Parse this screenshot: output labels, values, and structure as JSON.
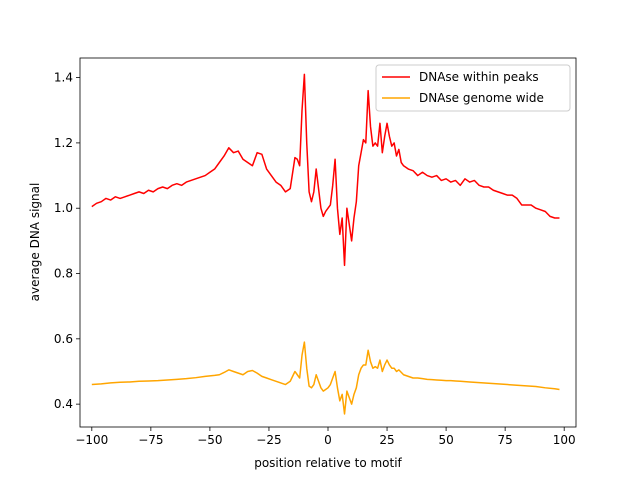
{
  "chart_data": {
    "type": "line",
    "title": "",
    "xlabel": "position relative to motif",
    "ylabel": "average DNA signal",
    "xlim": [
      -105,
      105
    ],
    "ylim": [
      0.33,
      1.46
    ],
    "xticks": [
      -100,
      -75,
      -50,
      -25,
      0,
      25,
      50,
      75,
      100
    ],
    "yticks": [
      0.4,
      0.6,
      0.8,
      1.0,
      1.2,
      1.4
    ],
    "ytick_labels": [
      "0.4",
      "0.6",
      "0.8",
      "1.0",
      "1.2",
      "1.4"
    ],
    "grid": false,
    "legend_position": "top-right",
    "series": [
      {
        "name": "DNAse within peaks",
        "color": "#ff0000",
        "points": [
          [
            -100,
            1.005
          ],
          [
            -98,
            1.015
          ],
          [
            -96,
            1.02
          ],
          [
            -94,
            1.03
          ],
          [
            -92,
            1.025
          ],
          [
            -90,
            1.035
          ],
          [
            -88,
            1.03
          ],
          [
            -86,
            1.035
          ],
          [
            -84,
            1.04
          ],
          [
            -82,
            1.045
          ],
          [
            -80,
            1.05
          ],
          [
            -78,
            1.045
          ],
          [
            -76,
            1.055
          ],
          [
            -74,
            1.05
          ],
          [
            -72,
            1.06
          ],
          [
            -70,
            1.065
          ],
          [
            -68,
            1.06
          ],
          [
            -66,
            1.07
          ],
          [
            -64,
            1.075
          ],
          [
            -62,
            1.07
          ],
          [
            -60,
            1.08
          ],
          [
            -58,
            1.085
          ],
          [
            -56,
            1.09
          ],
          [
            -54,
            1.095
          ],
          [
            -52,
            1.1
          ],
          [
            -50,
            1.11
          ],
          [
            -48,
            1.12
          ],
          [
            -46,
            1.14
          ],
          [
            -44,
            1.16
          ],
          [
            -42,
            1.185
          ],
          [
            -40,
            1.17
          ],
          [
            -38,
            1.175
          ],
          [
            -36,
            1.15
          ],
          [
            -34,
            1.14
          ],
          [
            -32,
            1.13
          ],
          [
            -30,
            1.17
          ],
          [
            -28,
            1.165
          ],
          [
            -26,
            1.12
          ],
          [
            -24,
            1.1
          ],
          [
            -22,
            1.08
          ],
          [
            -20,
            1.07
          ],
          [
            -18,
            1.05
          ],
          [
            -16,
            1.06
          ],
          [
            -14,
            1.155
          ],
          [
            -13,
            1.15
          ],
          [
            -12,
            1.13
          ],
          [
            -11,
            1.3
          ],
          [
            -10,
            1.41
          ],
          [
            -9,
            1.2
          ],
          [
            -8,
            1.05
          ],
          [
            -7,
            1.02
          ],
          [
            -6,
            1.05
          ],
          [
            -5,
            1.12
          ],
          [
            -4,
            1.06
          ],
          [
            -3,
            1.0
          ],
          [
            -2,
            0.975
          ],
          [
            -1,
            0.99
          ],
          [
            0,
            1.0
          ],
          [
            1,
            1.01
          ],
          [
            2,
            1.07
          ],
          [
            3,
            1.15
          ],
          [
            4,
            1.0
          ],
          [
            5,
            0.92
          ],
          [
            6,
            0.97
          ],
          [
            7,
            0.825
          ],
          [
            8,
            1.0
          ],
          [
            9,
            0.95
          ],
          [
            10,
            0.9
          ],
          [
            11,
            0.97
          ],
          [
            12,
            1.02
          ],
          [
            13,
            1.13
          ],
          [
            14,
            1.17
          ],
          [
            15,
            1.21
          ],
          [
            16,
            1.2
          ],
          [
            17,
            1.36
          ],
          [
            18,
            1.25
          ],
          [
            19,
            1.19
          ],
          [
            20,
            1.2
          ],
          [
            21,
            1.19
          ],
          [
            22,
            1.26
          ],
          [
            23,
            1.17
          ],
          [
            24,
            1.22
          ],
          [
            25,
            1.26
          ],
          [
            26,
            1.22
          ],
          [
            27,
            1.19
          ],
          [
            28,
            1.2
          ],
          [
            29,
            1.16
          ],
          [
            30,
            1.18
          ],
          [
            31,
            1.14
          ],
          [
            32,
            1.13
          ],
          [
            34,
            1.12
          ],
          [
            36,
            1.115
          ],
          [
            38,
            1.1
          ],
          [
            40,
            1.11
          ],
          [
            42,
            1.1
          ],
          [
            44,
            1.095
          ],
          [
            46,
            1.1
          ],
          [
            48,
            1.085
          ],
          [
            50,
            1.09
          ],
          [
            52,
            1.08
          ],
          [
            54,
            1.085
          ],
          [
            56,
            1.07
          ],
          [
            58,
            1.09
          ],
          [
            60,
            1.08
          ],
          [
            62,
            1.085
          ],
          [
            64,
            1.07
          ],
          [
            66,
            1.065
          ],
          [
            68,
            1.065
          ],
          [
            70,
            1.055
          ],
          [
            72,
            1.05
          ],
          [
            74,
            1.045
          ],
          [
            76,
            1.04
          ],
          [
            78,
            1.04
          ],
          [
            80,
            1.03
          ],
          [
            82,
            1.01
          ],
          [
            84,
            1.01
          ],
          [
            86,
            1.01
          ],
          [
            88,
            1.0
          ],
          [
            90,
            0.995
          ],
          [
            92,
            0.99
          ],
          [
            94,
            0.975
          ],
          [
            96,
            0.97
          ],
          [
            98,
            0.97
          ]
        ]
      },
      {
        "name": "DNAse genome wide",
        "color": "#ffa500",
        "points": [
          [
            -100,
            0.46
          ],
          [
            -96,
            0.462
          ],
          [
            -92,
            0.465
          ],
          [
            -88,
            0.467
          ],
          [
            -84,
            0.468
          ],
          [
            -80,
            0.47
          ],
          [
            -76,
            0.471
          ],
          [
            -72,
            0.472
          ],
          [
            -68,
            0.474
          ],
          [
            -64,
            0.476
          ],
          [
            -60,
            0.478
          ],
          [
            -56,
            0.481
          ],
          [
            -52,
            0.485
          ],
          [
            -48,
            0.488
          ],
          [
            -46,
            0.49
          ],
          [
            -44,
            0.497
          ],
          [
            -42,
            0.505
          ],
          [
            -40,
            0.5
          ],
          [
            -38,
            0.495
          ],
          [
            -36,
            0.49
          ],
          [
            -34,
            0.5
          ],
          [
            -32,
            0.503
          ],
          [
            -30,
            0.495
          ],
          [
            -28,
            0.485
          ],
          [
            -26,
            0.48
          ],
          [
            -24,
            0.475
          ],
          [
            -22,
            0.47
          ],
          [
            -20,
            0.465
          ],
          [
            -18,
            0.46
          ],
          [
            -16,
            0.47
          ],
          [
            -14,
            0.5
          ],
          [
            -13,
            0.49
          ],
          [
            -12,
            0.48
          ],
          [
            -11,
            0.55
          ],
          [
            -10,
            0.59
          ],
          [
            -9,
            0.51
          ],
          [
            -8,
            0.455
          ],
          [
            -7,
            0.45
          ],
          [
            -6,
            0.46
          ],
          [
            -5,
            0.49
          ],
          [
            -4,
            0.47
          ],
          [
            -3,
            0.45
          ],
          [
            -2,
            0.44
          ],
          [
            -1,
            0.445
          ],
          [
            0,
            0.45
          ],
          [
            1,
            0.46
          ],
          [
            2,
            0.48
          ],
          [
            3,
            0.5
          ],
          [
            4,
            0.45
          ],
          [
            5,
            0.41
          ],
          [
            6,
            0.43
          ],
          [
            7,
            0.37
          ],
          [
            8,
            0.44
          ],
          [
            9,
            0.42
          ],
          [
            10,
            0.4
          ],
          [
            11,
            0.43
          ],
          [
            12,
            0.45
          ],
          [
            13,
            0.49
          ],
          [
            14,
            0.51
          ],
          [
            15,
            0.52
          ],
          [
            16,
            0.52
          ],
          [
            17,
            0.565
          ],
          [
            18,
            0.53
          ],
          [
            19,
            0.51
          ],
          [
            20,
            0.515
          ],
          [
            21,
            0.51
          ],
          [
            22,
            0.535
          ],
          [
            23,
            0.5
          ],
          [
            24,
            0.52
          ],
          [
            25,
            0.535
          ],
          [
            26,
            0.52
          ],
          [
            27,
            0.51
          ],
          [
            28,
            0.51
          ],
          [
            29,
            0.5
          ],
          [
            30,
            0.505
          ],
          [
            32,
            0.49
          ],
          [
            34,
            0.485
          ],
          [
            36,
            0.48
          ],
          [
            38,
            0.48
          ],
          [
            40,
            0.478
          ],
          [
            42,
            0.476
          ],
          [
            44,
            0.475
          ],
          [
            46,
            0.474
          ],
          [
            48,
            0.473
          ],
          [
            50,
            0.472
          ],
          [
            52,
            0.472
          ],
          [
            54,
            0.471
          ],
          [
            56,
            0.47
          ],
          [
            58,
            0.469
          ],
          [
            60,
            0.468
          ],
          [
            64,
            0.466
          ],
          [
            68,
            0.464
          ],
          [
            72,
            0.462
          ],
          [
            76,
            0.46
          ],
          [
            80,
            0.458
          ],
          [
            84,
            0.456
          ],
          [
            88,
            0.454
          ],
          [
            92,
            0.45
          ],
          [
            96,
            0.447
          ],
          [
            98,
            0.445
          ]
        ]
      }
    ]
  }
}
